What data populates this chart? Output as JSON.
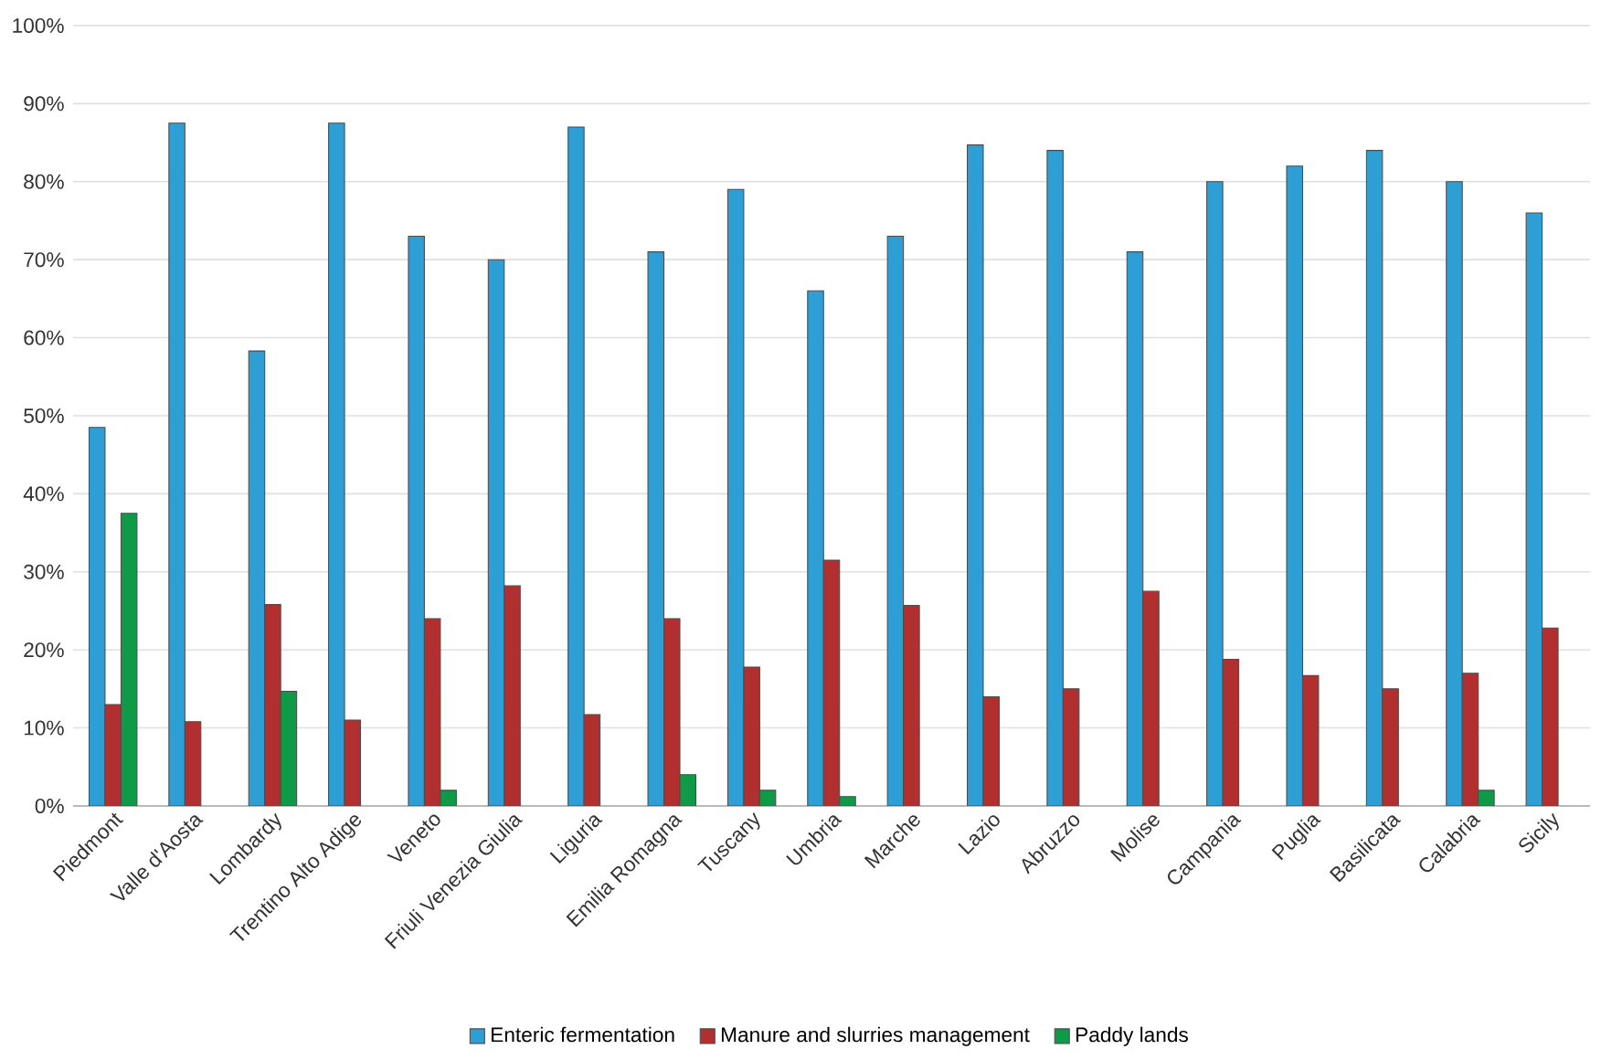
{
  "chart_data": {
    "type": "bar",
    "categories": [
      "Piedmont",
      "Valle d'Aosta",
      "Lombardy",
      "Trentino Alto Adige",
      "Veneto",
      "Friuli Venezia Giulia",
      "Liguria",
      "Emilia Romagna",
      "Tuscany",
      "Umbria",
      "Marche",
      "Lazio",
      "Abruzzo",
      "Molise",
      "Campania",
      "Puglia",
      "Basilicata",
      "Calabria",
      "Sicily"
    ],
    "series": [
      {
        "name": "Enteric fermentation",
        "color": "#2e9fd4",
        "values": [
          48.5,
          87.5,
          58.3,
          87.5,
          73,
          70,
          87,
          71,
          79,
          66,
          73,
          84.7,
          84,
          71,
          80,
          82,
          84,
          80,
          76
        ]
      },
      {
        "name": "Manure and slurries management",
        "color": "#b22f2f",
        "values": [
          13,
          10.8,
          25.8,
          11,
          24,
          28.2,
          11.7,
          24,
          17.8,
          31.5,
          25.7,
          14,
          15,
          27.5,
          18.8,
          16.7,
          15,
          17,
          22.8
        ]
      },
      {
        "name": "Paddy lands",
        "color": "#0f9a47",
        "values": [
          37.5,
          null,
          14.7,
          null,
          2,
          null,
          null,
          4,
          2,
          1.2,
          null,
          null,
          null,
          null,
          null,
          null,
          null,
          2,
          null
        ]
      }
    ],
    "ylim": [
      0,
      100
    ],
    "yticks": [
      {
        "value": 0,
        "label": "0%"
      },
      {
        "value": 10,
        "label": "10%"
      },
      {
        "value": 20,
        "label": "20%"
      },
      {
        "value": 30,
        "label": "30%"
      },
      {
        "value": 40,
        "label": "40%"
      },
      {
        "value": 50,
        "label": "50%"
      },
      {
        "value": 60,
        "label": "60%"
      },
      {
        "value": 70,
        "label": "70%"
      },
      {
        "value": 80,
        "label": "80%"
      },
      {
        "value": 90,
        "label": "90%"
      },
      {
        "value": 100,
        "label": "100%"
      }
    ],
    "grid": "y",
    "legend": "bottom"
  }
}
